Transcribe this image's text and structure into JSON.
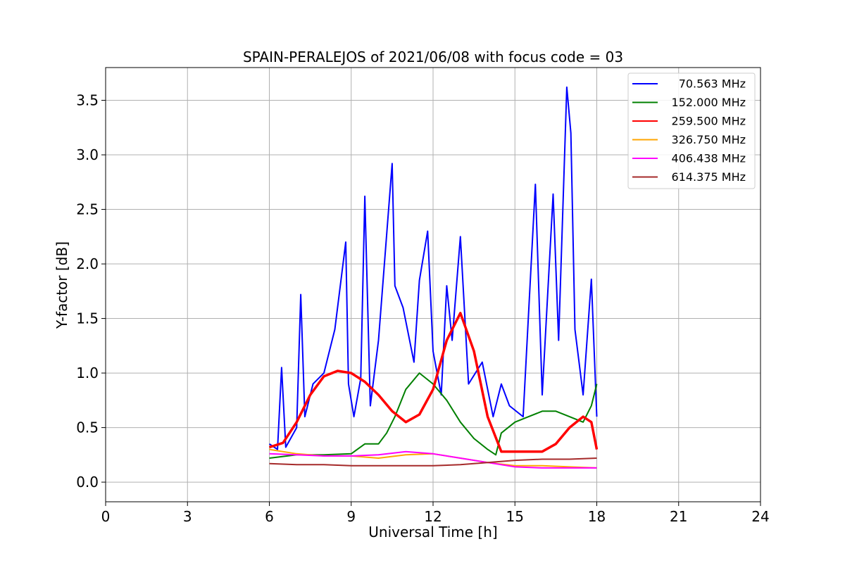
{
  "chart_data": {
    "type": "line",
    "title": "SPAIN-PERALEJOS of 2021/06/08 with focus code = 03",
    "xlabel": "Universal Time [h]",
    "ylabel": "Y-factor [dB]",
    "xlim": [
      0,
      24
    ],
    "ylim": [
      -0.18,
      3.8
    ],
    "xticks": [
      0,
      3,
      6,
      9,
      12,
      15,
      18,
      21,
      24
    ],
    "yticks": [
      0.0,
      0.5,
      1.0,
      1.5,
      2.0,
      2.5,
      3.0,
      3.5
    ],
    "xtick_labels": [
      "0",
      "3",
      "6",
      "9",
      "12",
      "15",
      "18",
      "21",
      "24"
    ],
    "ytick_labels": [
      "0.0",
      "0.5",
      "1.0",
      "1.5",
      "2.0",
      "2.5",
      "3.0",
      "3.5"
    ],
    "grid": true,
    "legend_position": "top-right",
    "series": [
      {
        "name": "70.563 MHz",
        "color": "#0000ff",
        "x": [
          6.0,
          6.3,
          6.45,
          6.6,
          7.0,
          7.15,
          7.3,
          7.6,
          8.0,
          8.4,
          8.8,
          8.9,
          9.1,
          9.35,
          9.5,
          9.7,
          10.0,
          10.5,
          10.6,
          10.9,
          11.3,
          11.5,
          11.8,
          12.0,
          12.3,
          12.5,
          12.7,
          13.0,
          13.3,
          13.8,
          14.2,
          14.5,
          14.8,
          15.3,
          15.75,
          16.0,
          16.4,
          16.6,
          16.9,
          17.05,
          17.2,
          17.5,
          17.8,
          18.0
        ],
        "y": [
          0.35,
          0.3,
          1.05,
          0.32,
          0.5,
          1.72,
          0.6,
          0.9,
          1.0,
          1.4,
          2.2,
          0.9,
          0.6,
          0.95,
          2.62,
          0.7,
          1.3,
          2.92,
          1.8,
          1.6,
          1.1,
          1.85,
          2.3,
          1.2,
          0.8,
          1.8,
          1.3,
          2.25,
          0.9,
          1.1,
          0.6,
          0.9,
          0.7,
          0.6,
          2.73,
          0.8,
          2.64,
          1.3,
          3.62,
          3.2,
          1.4,
          0.8,
          1.86,
          0.6
        ]
      },
      {
        "name": "152.000 MHz",
        "color": "#008000",
        "x": [
          6.0,
          7.0,
          8.0,
          9.0,
          9.5,
          10.0,
          10.3,
          10.6,
          11.0,
          11.5,
          12.0,
          12.5,
          13.0,
          13.5,
          14.0,
          14.3,
          14.5,
          15.0,
          15.5,
          16.0,
          16.5,
          17.0,
          17.5,
          17.8,
          18.0
        ],
        "y": [
          0.22,
          0.25,
          0.25,
          0.26,
          0.35,
          0.35,
          0.45,
          0.6,
          0.85,
          1.0,
          0.9,
          0.75,
          0.55,
          0.4,
          0.3,
          0.25,
          0.45,
          0.55,
          0.6,
          0.65,
          0.65,
          0.6,
          0.55,
          0.7,
          0.9
        ]
      },
      {
        "name": "259.500 MHz",
        "color": "#ff0000",
        "x": [
          6.0,
          6.5,
          7.0,
          7.5,
          8.0,
          8.5,
          9.0,
          9.5,
          10.0,
          10.5,
          11.0,
          11.5,
          12.0,
          12.5,
          13.0,
          13.5,
          14.0,
          14.5,
          15.0,
          15.5,
          16.0,
          16.5,
          17.0,
          17.5,
          17.8,
          18.0
        ],
        "y": [
          0.32,
          0.36,
          0.55,
          0.8,
          0.97,
          1.02,
          1.0,
          0.92,
          0.8,
          0.65,
          0.55,
          0.62,
          0.85,
          1.3,
          1.55,
          1.2,
          0.6,
          0.28,
          0.28,
          0.28,
          0.28,
          0.35,
          0.5,
          0.6,
          0.55,
          0.3
        ]
      },
      {
        "name": "326.750 MHz",
        "color": "#ffa500",
        "x": [
          6.0,
          7.0,
          8.0,
          9.0,
          10.0,
          11.0,
          12.0,
          13.0,
          14.0,
          15.0,
          16.0,
          17.0,
          18.0
        ],
        "y": [
          0.3,
          0.26,
          0.24,
          0.24,
          0.22,
          0.25,
          0.26,
          0.22,
          0.18,
          0.15,
          0.15,
          0.14,
          0.13
        ]
      },
      {
        "name": "406.438 MHz",
        "color": "#ff00ff",
        "x": [
          6.0,
          7.0,
          8.0,
          9.0,
          10.0,
          11.0,
          12.0,
          13.0,
          14.0,
          15.0,
          16.0,
          17.0,
          18.0
        ],
        "y": [
          0.26,
          0.25,
          0.24,
          0.24,
          0.25,
          0.28,
          0.26,
          0.22,
          0.18,
          0.14,
          0.13,
          0.13,
          0.13
        ]
      },
      {
        "name": "614.375 MHz",
        "color": "#a52a2a",
        "x": [
          6.0,
          7.0,
          8.0,
          9.0,
          10.0,
          11.0,
          12.0,
          13.0,
          14.0,
          15.0,
          16.0,
          17.0,
          18.0
        ],
        "y": [
          0.17,
          0.16,
          0.16,
          0.15,
          0.15,
          0.15,
          0.15,
          0.16,
          0.18,
          0.2,
          0.21,
          0.21,
          0.22
        ]
      }
    ]
  }
}
